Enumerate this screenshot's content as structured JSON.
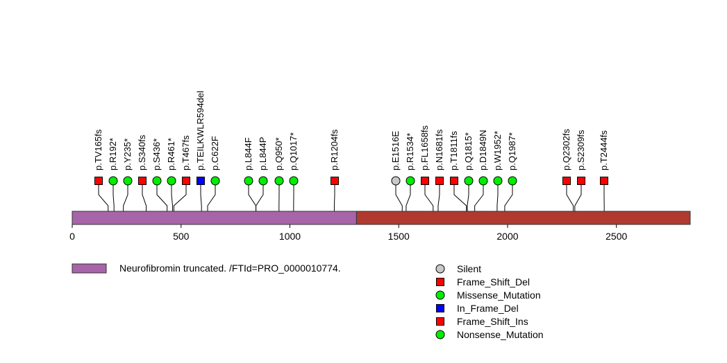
{
  "protein": {
    "length": 2839,
    "segments": [
      {
        "start": 1,
        "end": 1306,
        "color": "#a864a8",
        "label": "Neurofibromin truncated. /FTId=PRO_0000010774."
      },
      {
        "start": 1306,
        "end": 2839,
        "color": "#b03a30"
      }
    ]
  },
  "axis": {
    "ticks": [
      {
        "value": 0,
        "label": "0"
      },
      {
        "value": 500,
        "label": "500"
      },
      {
        "value": 1000,
        "label": "1000"
      },
      {
        "value": 1500,
        "label": "1500"
      },
      {
        "value": 2000,
        "label": "2000"
      },
      {
        "value": 2500,
        "label": "2500"
      }
    ]
  },
  "mutation_types": {
    "Silent": {
      "color": "#c8c8c8",
      "shape": "circle"
    },
    "Frame_Shift_Del": {
      "color": "#ff0000",
      "shape": "square"
    },
    "Missense_Mutation": {
      "color": "#00ee00",
      "shape": "circle"
    },
    "In_Frame_Del": {
      "color": "#0000ff",
      "shape": "square"
    },
    "Frame_Shift_Ins": {
      "color": "#ff0000",
      "shape": "square"
    },
    "Nonsense_Mutation": {
      "color": "#00ee00",
      "shape": "circle"
    }
  },
  "legend": {
    "domain_label": "Neurofibromin truncated. /FTId=PRO_0000010774.",
    "domain_color": "#a864a8",
    "items": [
      {
        "label": "Silent",
        "type": "Silent"
      },
      {
        "label": "Frame_Shift_Del",
        "type": "Frame_Shift_Del"
      },
      {
        "label": "Missense_Mutation",
        "type": "Missense_Mutation"
      },
      {
        "label": "In_Frame_Del",
        "type": "In_Frame_Del"
      },
      {
        "label": "Frame_Shift_Ins",
        "type": "Frame_Shift_Ins"
      },
      {
        "label": "Nonsense_Mutation",
        "type": "Nonsense_Mutation"
      }
    ]
  },
  "mutations": [
    {
      "label": "p.TV165fs",
      "pos": 165,
      "type": "Frame_Shift_Del"
    },
    {
      "label": "p.R192*",
      "pos": 192,
      "type": "Nonsense_Mutation"
    },
    {
      "label": "p.Y235*",
      "pos": 235,
      "type": "Nonsense_Mutation"
    },
    {
      "label": "p.S340fs",
      "pos": 340,
      "type": "Frame_Shift_Del"
    },
    {
      "label": "p.S436*",
      "pos": 436,
      "type": "Nonsense_Mutation"
    },
    {
      "label": "p.R461*",
      "pos": 461,
      "type": "Nonsense_Mutation"
    },
    {
      "label": "p.T467fs",
      "pos": 467,
      "type": "Frame_Shift_Del"
    },
    {
      "label": "p.TEILKWLR594del",
      "pos": 594,
      "type": "In_Frame_Del"
    },
    {
      "label": "p.C622F",
      "pos": 622,
      "type": "Missense_Mutation"
    },
    {
      "label": "p.L844F",
      "pos": 844,
      "type": "Missense_Mutation"
    },
    {
      "label": "p.L844P",
      "pos": 844,
      "type": "Missense_Mutation"
    },
    {
      "label": "p.Q950*",
      "pos": 950,
      "type": "Nonsense_Mutation"
    },
    {
      "label": "p.Q1017*",
      "pos": 1017,
      "type": "Nonsense_Mutation"
    },
    {
      "label": "p.R1204fs",
      "pos": 1204,
      "type": "Frame_Shift_Del"
    },
    {
      "label": "p.E1516E",
      "pos": 1516,
      "type": "Silent"
    },
    {
      "label": "p.R1534*",
      "pos": 1534,
      "type": "Nonsense_Mutation"
    },
    {
      "label": "p.FL1658fs",
      "pos": 1658,
      "type": "Frame_Shift_Del"
    },
    {
      "label": "p.N1681fs",
      "pos": 1681,
      "type": "Frame_Shift_Del"
    },
    {
      "label": "p.T1811fs",
      "pos": 1811,
      "type": "Frame_Shift_Del"
    },
    {
      "label": "p.Q1815*",
      "pos": 1815,
      "type": "Nonsense_Mutation"
    },
    {
      "label": "p.D1849N",
      "pos": 1849,
      "type": "Missense_Mutation"
    },
    {
      "label": "p.W1952*",
      "pos": 1952,
      "type": "Nonsense_Mutation"
    },
    {
      "label": "p.Q1987*",
      "pos": 1987,
      "type": "Nonsense_Mutation"
    },
    {
      "label": "p.Q2302fs",
      "pos": 2302,
      "type": "Frame_Shift_Del"
    },
    {
      "label": "p.S2309fs",
      "pos": 2309,
      "type": "Frame_Shift_Del"
    },
    {
      "label": "p.T2444fs",
      "pos": 2444,
      "type": "Frame_Shift_Del"
    }
  ]
}
